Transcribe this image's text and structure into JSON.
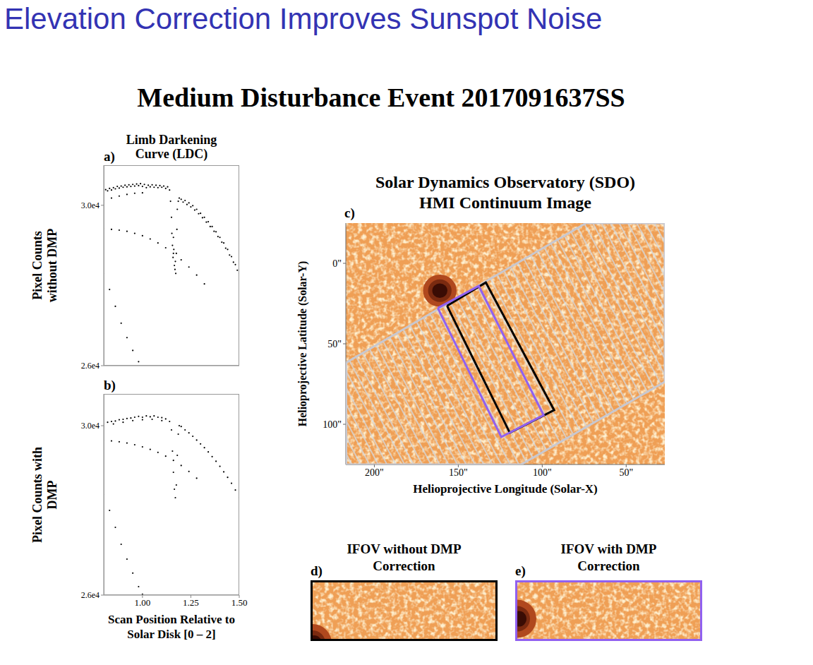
{
  "slide": {
    "title": "Elevation Correction Improves Sunspot Noise",
    "color": "#3333b3",
    "subtitle": "Medium Disturbance Event 2017091637SS"
  },
  "chart_data": [
    {
      "type": "scatter",
      "label": "a)",
      "title": "Limb Darkening Curve (LDC)",
      "y_label": "Pixel Counts without DMP",
      "color": "#000000",
      "marker": "dot",
      "tick_labels": "y",
      "xlim": [
        0.8,
        1.5
      ],
      "xticks": [
        {
          "value": 1.0,
          "label": "1.00"
        },
        {
          "value": 1.25,
          "label": "1.25"
        },
        {
          "value": 1.5,
          "label": "1.50"
        }
      ],
      "ylim": [
        26000,
        31000
      ],
      "yticks": [
        {
          "value": 26000,
          "label": "2.6e4"
        },
        {
          "value": 30000,
          "label": "3.0e4"
        }
      ],
      "x": [
        0.8,
        0.81,
        0.82,
        0.83,
        0.84,
        0.85,
        0.86,
        0.87,
        0.88,
        0.89,
        0.9,
        0.91,
        0.92,
        0.93,
        0.94,
        0.95,
        0.96,
        0.97,
        0.98,
        0.99,
        1.0,
        1.01,
        1.02,
        1.03,
        1.04,
        1.05,
        1.06,
        1.07,
        1.08,
        1.09,
        1.1,
        1.11,
        1.12,
        1.13,
        1.14,
        1.145,
        1.15,
        1.152,
        1.155,
        1.158,
        1.16,
        1.162,
        1.165,
        1.168,
        1.17,
        1.172,
        1.175,
        1.178,
        1.18,
        1.185,
        1.19,
        1.2,
        1.21,
        1.22,
        1.23,
        1.24,
        1.25,
        1.26,
        1.27,
        1.28,
        1.29,
        1.3,
        1.31,
        1.32,
        1.33,
        1.34,
        1.35,
        1.36,
        1.37,
        1.38,
        1.39,
        1.4,
        1.41,
        1.42,
        1.43,
        1.44,
        1.45,
        1.46,
        1.47,
        1.48,
        1.49,
        1.5,
        0.8,
        0.84,
        0.88,
        0.92,
        0.96,
        1.0,
        0.8,
        0.84,
        0.88,
        0.92,
        0.96,
        1.0,
        1.04,
        1.08,
        1.12,
        1.16,
        1.2,
        1.24,
        1.28,
        1.32,
        0.8,
        0.83,
        0.86,
        0.89,
        0.92,
        0.95,
        0.98
      ],
      "values": [
        30330,
        30390,
        30360,
        30420,
        30380,
        30440,
        30410,
        30470,
        30430,
        30480,
        30450,
        30500,
        30460,
        30510,
        30470,
        30520,
        30480,
        30530,
        30490,
        30540,
        30470,
        30520,
        30440,
        30500,
        30460,
        30510,
        30450,
        30500,
        30440,
        30490,
        30450,
        30480,
        30420,
        30460,
        30380,
        30100,
        29700,
        29300,
        29000,
        28700,
        29200,
        28900,
        28500,
        28400,
        28600,
        28300,
        28800,
        29400,
        29900,
        30100,
        30180,
        30150,
        30080,
        30120,
        30020,
        30060,
        29960,
        29990,
        29880,
        29900,
        29790,
        29800,
        29690,
        29700,
        29580,
        29590,
        29470,
        29470,
        29350,
        29340,
        29220,
        29200,
        29080,
        29060,
        28930,
        28900,
        28760,
        28720,
        28580,
        28520,
        28380,
        28300,
        30120,
        30180,
        30230,
        30270,
        30300,
        30310,
        29420,
        29400,
        29380,
        29350,
        29300,
        29240,
        29160,
        29060,
        28940,
        28800,
        28640,
        28460,
        28260,
        28040,
        28300,
        27900,
        27480,
        27060,
        26700,
        26380,
        26100
      ]
    },
    {
      "type": "scatter",
      "label": "b)",
      "y_label": "Pixel Counts with DMP",
      "x_label": "Scan Position Relative to Solar Disk [0 – 2]",
      "color": "#000000",
      "marker": "dot",
      "xlim": [
        0.8,
        1.5
      ],
      "xticks": [
        {
          "value": 1.0,
          "label": "1.00"
        },
        {
          "value": 1.25,
          "label": "1.25"
        },
        {
          "value": 1.5,
          "label": "1.50"
        }
      ],
      "ylim": [
        26000,
        30750
      ],
      "yticks": [
        {
          "value": 26000,
          "label": "2.6e4"
        },
        {
          "value": 30000,
          "label": "3.0e4"
        }
      ],
      "x": [
        0.8,
        0.82,
        0.84,
        0.86,
        0.88,
        0.9,
        0.92,
        0.94,
        0.96,
        0.98,
        1.0,
        1.02,
        1.04,
        1.06,
        1.08,
        1.1,
        1.12,
        1.14,
        1.15,
        1.155,
        1.16,
        1.165,
        1.17,
        1.175,
        1.18,
        1.185,
        1.19,
        1.2,
        1.22,
        1.24,
        1.26,
        1.28,
        1.3,
        1.32,
        1.34,
        1.36,
        1.38,
        1.4,
        1.42,
        1.44,
        1.46,
        1.48,
        1.5,
        0.8,
        0.85,
        0.9,
        0.95,
        1.0,
        1.05,
        1.1,
        0.8,
        0.84,
        0.88,
        0.92,
        0.96,
        1.0,
        1.04,
        1.08,
        1.12,
        1.16,
        1.2,
        1.24,
        1.28,
        0.8,
        0.83,
        0.86,
        0.89,
        0.92,
        0.95,
        0.98,
        1.0
      ],
      "values": [
        30050,
        30080,
        30100,
        30110,
        30140,
        30150,
        30170,
        30180,
        30200,
        30220,
        30200,
        30230,
        30210,
        30230,
        30200,
        30190,
        30160,
        30100,
        29900,
        29400,
        28900,
        28500,
        28300,
        28600,
        29300,
        29800,
        30000,
        29980,
        29900,
        29830,
        29750,
        29660,
        29570,
        29480,
        29380,
        29270,
        29160,
        29040,
        28910,
        28780,
        28640,
        28480,
        28300,
        29980,
        30040,
        30080,
        30120,
        30140,
        30150,
        30120,
        29650,
        29640,
        29620,
        29590,
        29550,
        29500,
        29440,
        29370,
        29280,
        29180,
        29060,
        28920,
        28760,
        28380,
        28000,
        27600,
        27200,
        26850,
        26520,
        26200,
        26020
      ]
    },
    {
      "type": "image",
      "label": "c)",
      "title": "Solar Dynamics Observatory (SDO)",
      "subtitle": "HMI Continuum Image",
      "x_label": "Helioprojective Longitude (Solar-X)",
      "y_label": "Helioprojective Latitude (Solar-Y)",
      "xlim": [
        217,
        27
      ],
      "xticks": [
        {
          "value": 200,
          "label": "200\""
        },
        {
          "value": 150,
          "label": "150\""
        },
        {
          "value": 100,
          "label": "100\""
        },
        {
          "value": 50,
          "label": "50\""
        }
      ],
      "ylim": [
        125,
        -25
      ],
      "yticks": [
        {
          "value": 0,
          "label": "0\""
        },
        {
          "value": 50,
          "label": "50\""
        },
        {
          "value": 100,
          "label": "100\""
        }
      ],
      "scan_region": {
        "color": "#c8c8d0",
        "points": [
          [
            216.8,
            61.7
          ],
          [
            73.9,
            -25
          ],
          [
            27,
            -25
          ],
          [
            27,
            73.6
          ],
          [
            112.6,
            125
          ],
          [
            216.8,
            125
          ]
        ]
      },
      "boxes": [
        {
          "color": "#000000",
          "points": [
            [
              156.7,
              26.4
            ],
            [
              133.6,
              11.9
            ],
            [
              92.9,
              91.2
            ],
            [
              119.3,
              105.3
            ]
          ]
        },
        {
          "color": "#9060f0",
          "points": [
            [
              162.2,
              27.8
            ],
            [
              137.8,
              14.1
            ],
            [
              99.2,
              94.3
            ],
            [
              124.4,
              107.9
            ]
          ]
        }
      ],
      "sunspot": {
        "x": 161,
        "y": 17,
        "radius": 10
      }
    }
  ],
  "insets": [
    {
      "label": "d)",
      "title": "IFOV without DMP Correction",
      "color": "#000000"
    },
    {
      "label": "e)",
      "title": "IFOV with DMP Correction",
      "color": "#9060f0"
    }
  ]
}
